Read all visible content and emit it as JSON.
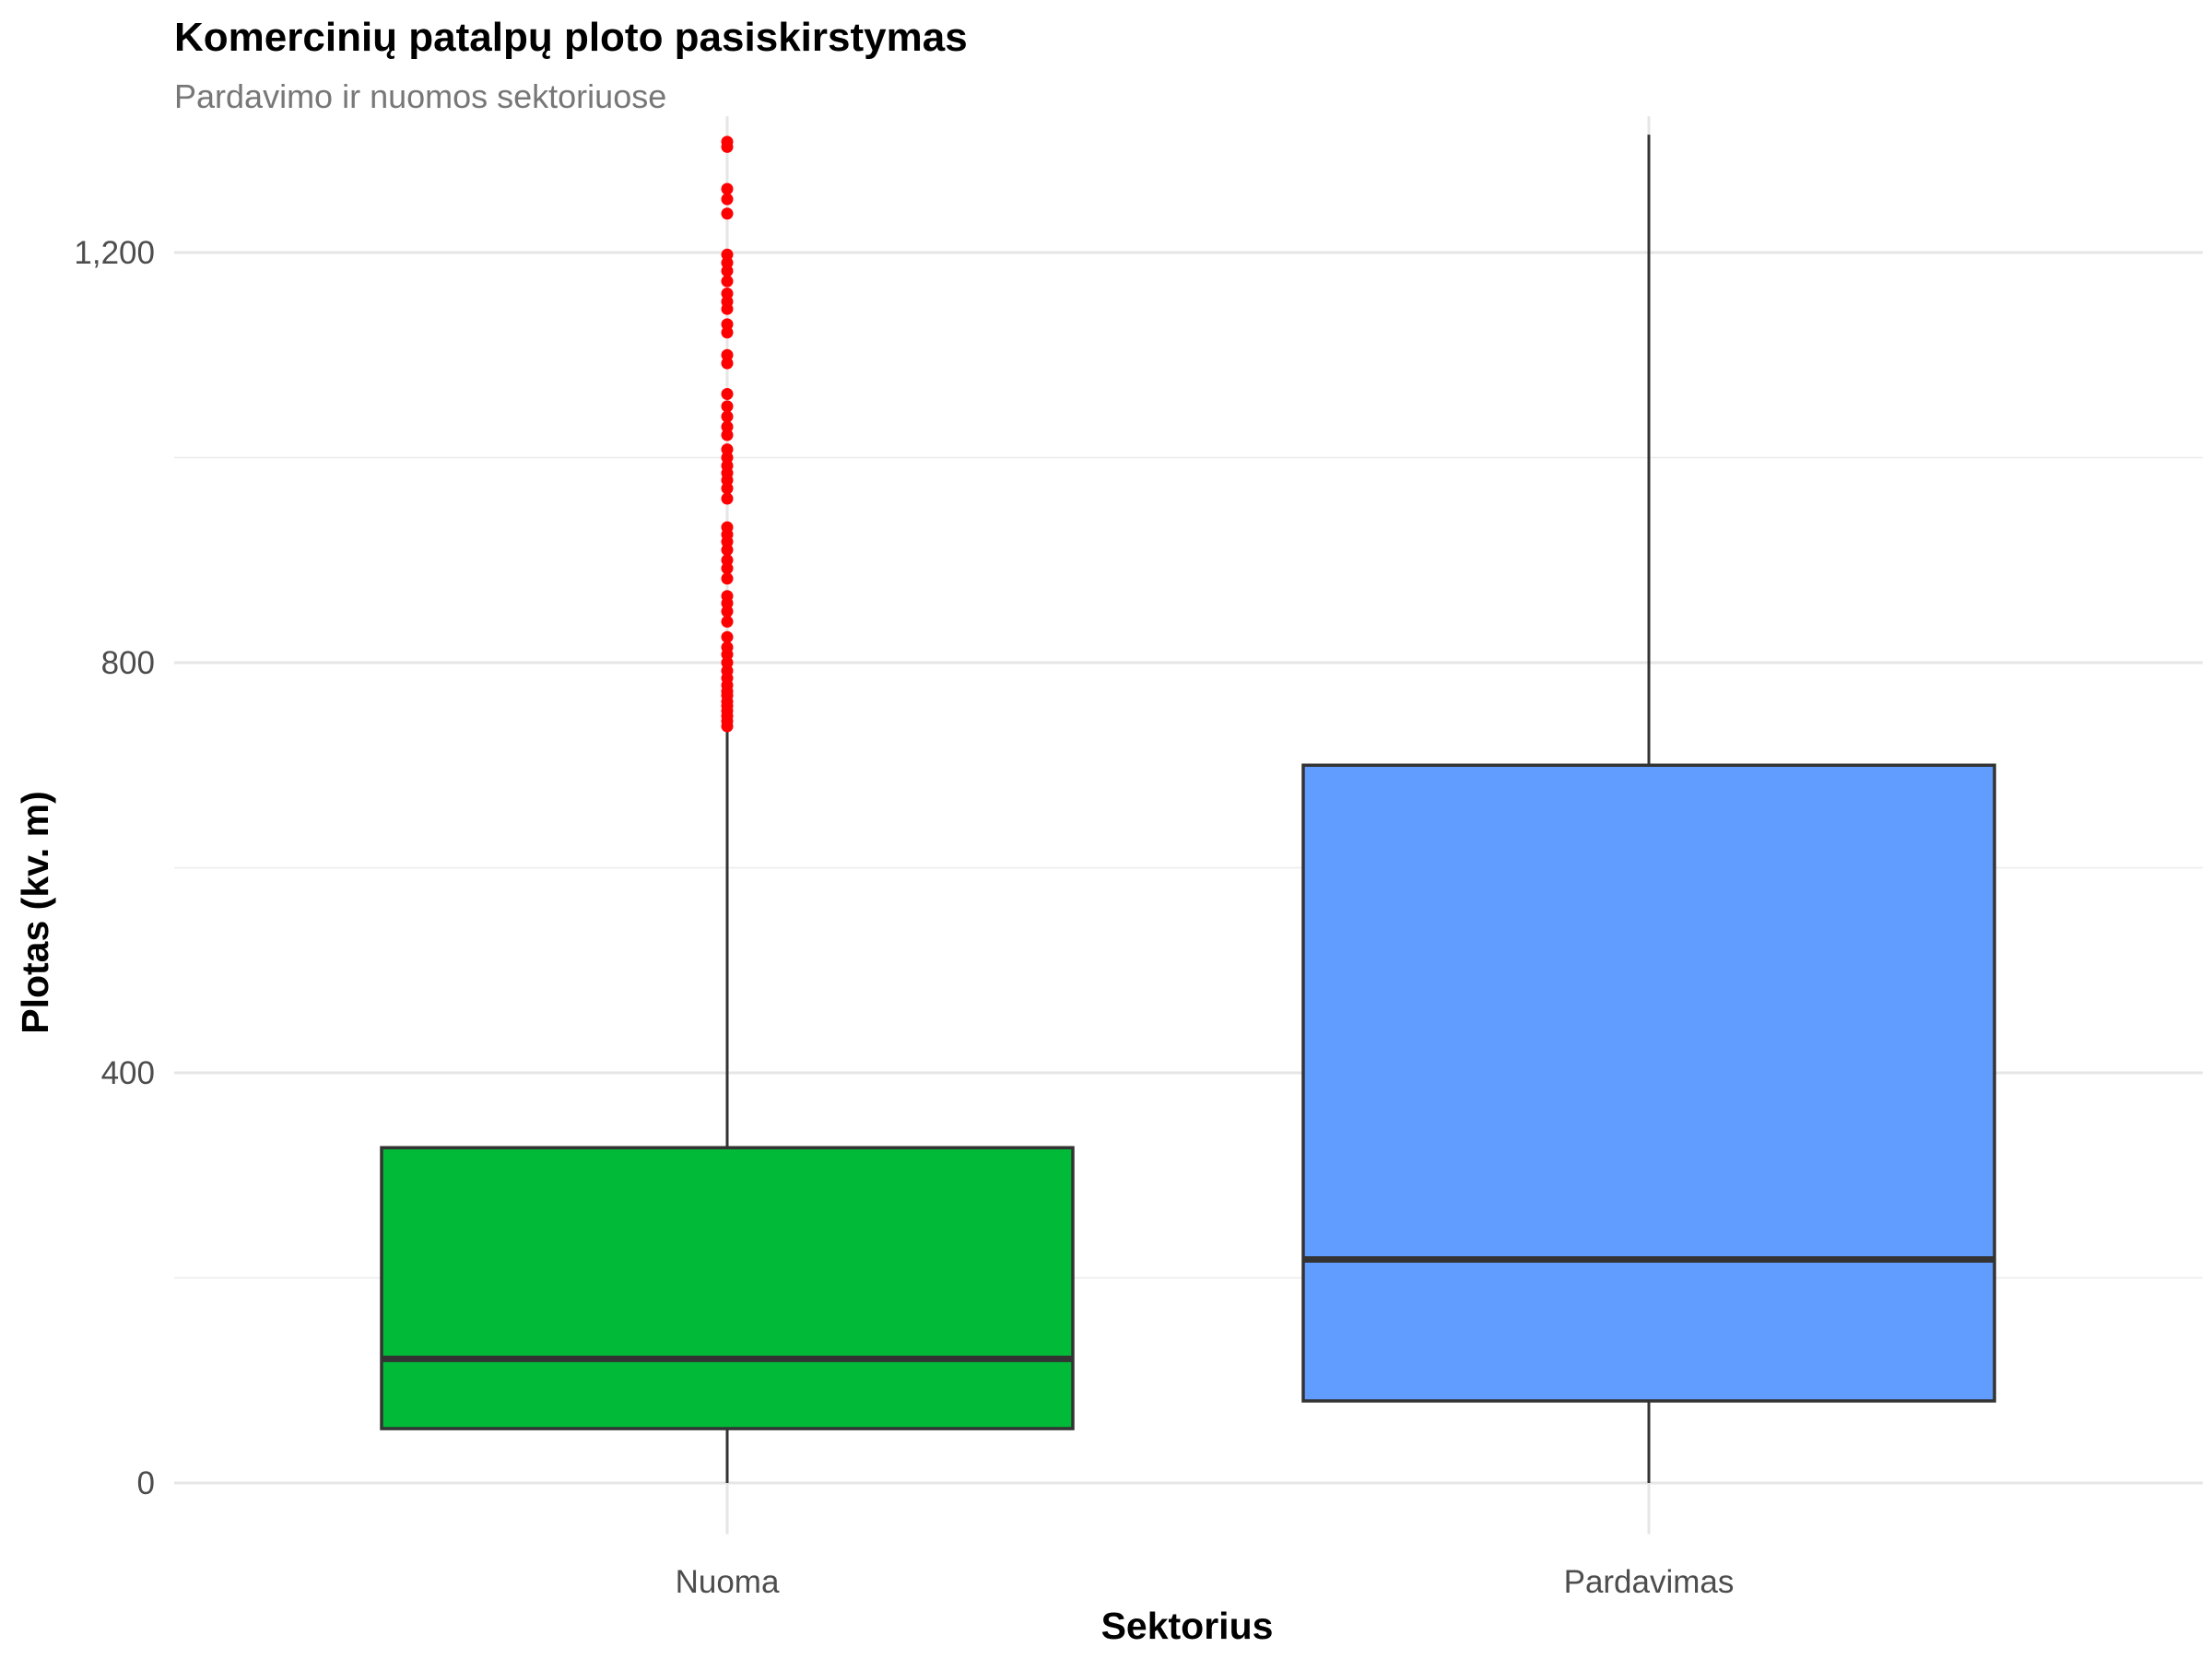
{
  "chart_data": {
    "type": "box",
    "title": "Komercinių patalpų ploto pasiskirstymas",
    "subtitle": "Pardavimo ir nuomos sektoriuose",
    "xlabel": "Sektorius",
    "ylabel": "Plotas (kv. m)",
    "ylim": [
      -50,
      1315
    ],
    "yticks": [
      0,
      400,
      800,
      1200
    ],
    "ytick_labels": [
      "0",
      "400",
      "800",
      "1,200"
    ],
    "y_minor_grid": [
      200,
      600,
      1000
    ],
    "categories": [
      "Nuoma",
      "Pardavimas"
    ],
    "grid": true,
    "boxes": [
      {
        "category": "Nuoma",
        "color": "#00BA38",
        "whisker_low": 0,
        "q1": 53,
        "median": 121,
        "q3": 327,
        "whisker_high": 735,
        "outlier_color": "#FF0000",
        "outliers": [
          738,
          743,
          748,
          753,
          758,
          762,
          768,
          772,
          778,
          785,
          792,
          800,
          808,
          815,
          825,
          840,
          850,
          858,
          865,
          882,
          892,
          900,
          910,
          918,
          925,
          932,
          960,
          970,
          978,
          985,
          992,
          1000,
          1008,
          1022,
          1030,
          1040,
          1050,
          1062,
          1092,
          1100,
          1122,
          1130,
          1145,
          1152,
          1160,
          1172,
          1182,
          1190,
          1198,
          1238,
          1252,
          1262,
          1303,
          1308
        ]
      },
      {
        "category": "Pardavimas",
        "color": "#619CFF",
        "whisker_low": 0,
        "q1": 80,
        "median": 218,
        "q3": 700,
        "whisker_high": 1315,
        "outliers": []
      }
    ]
  }
}
